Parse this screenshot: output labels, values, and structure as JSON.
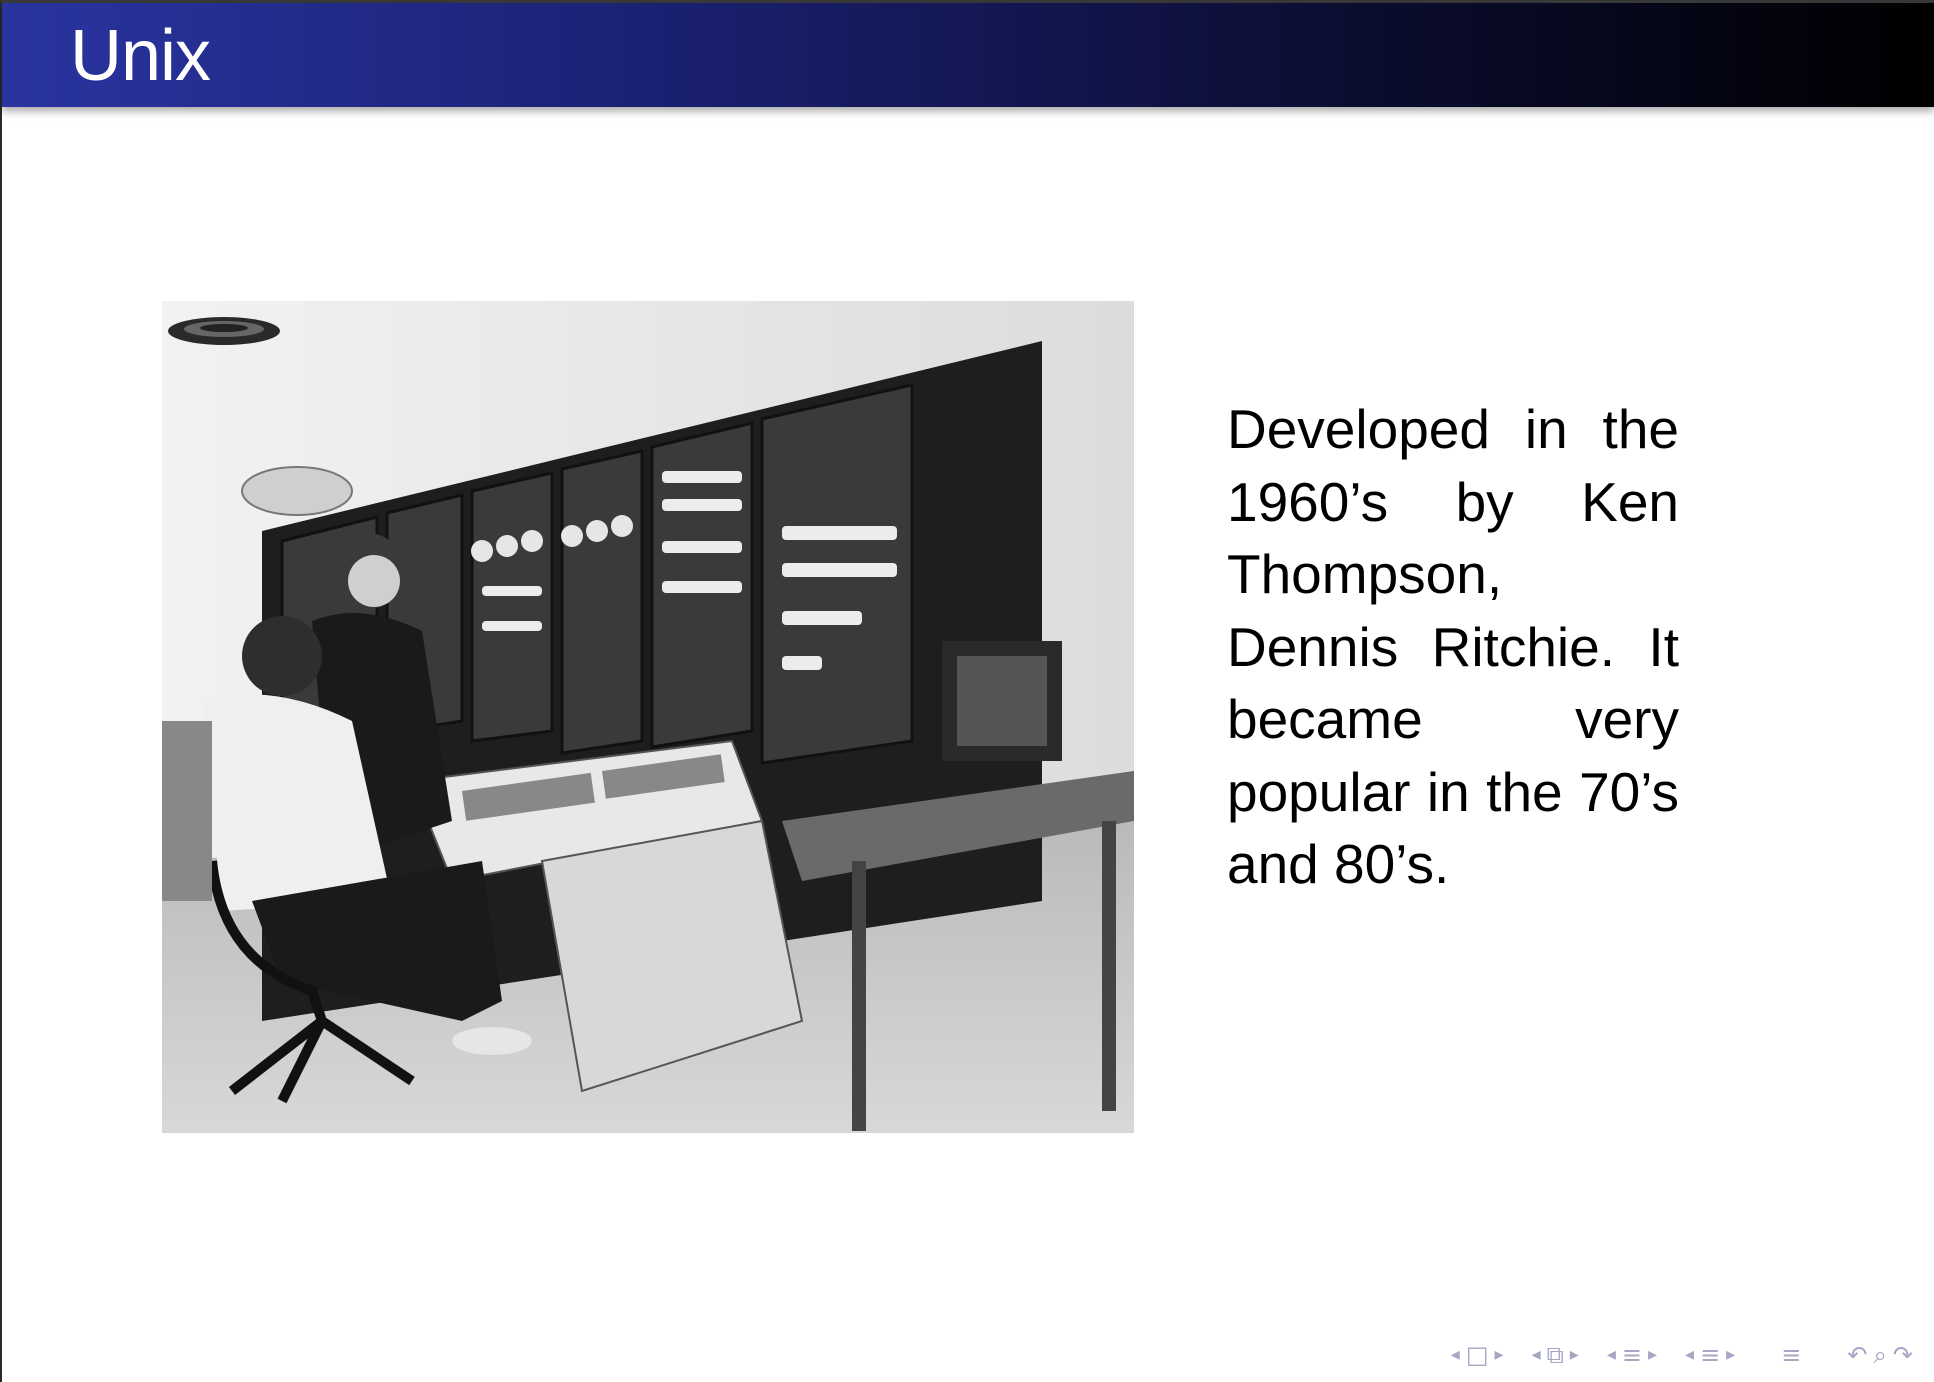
{
  "slide": {
    "title": "Unix",
    "body": "Developed in the 1960’s by Ken Thompson, Dennis Ritchie. It became very popular in the 70’s and 80’s."
  },
  "photo": {
    "icon": "photograph-of-pdp-11-computer-and-operators"
  },
  "navigation": {
    "first_frame_prev": "◂",
    "frame": "□",
    "first_frame_next": "▸",
    "subsection_prev": "◂",
    "subsection": "⧉",
    "subsection_next": "▸",
    "section_prev": "◂",
    "section": "≡",
    "section_next": "▸",
    "doc_prev": "◂",
    "doc": "≡",
    "doc_next": "▸",
    "toc": "≡",
    "back": "↶",
    "search": "⌕",
    "forward": "↷"
  },
  "colors": {
    "title_bar_left": "#2a34a0",
    "title_bar_right": "#000000",
    "nav": "#a5a7c4"
  }
}
